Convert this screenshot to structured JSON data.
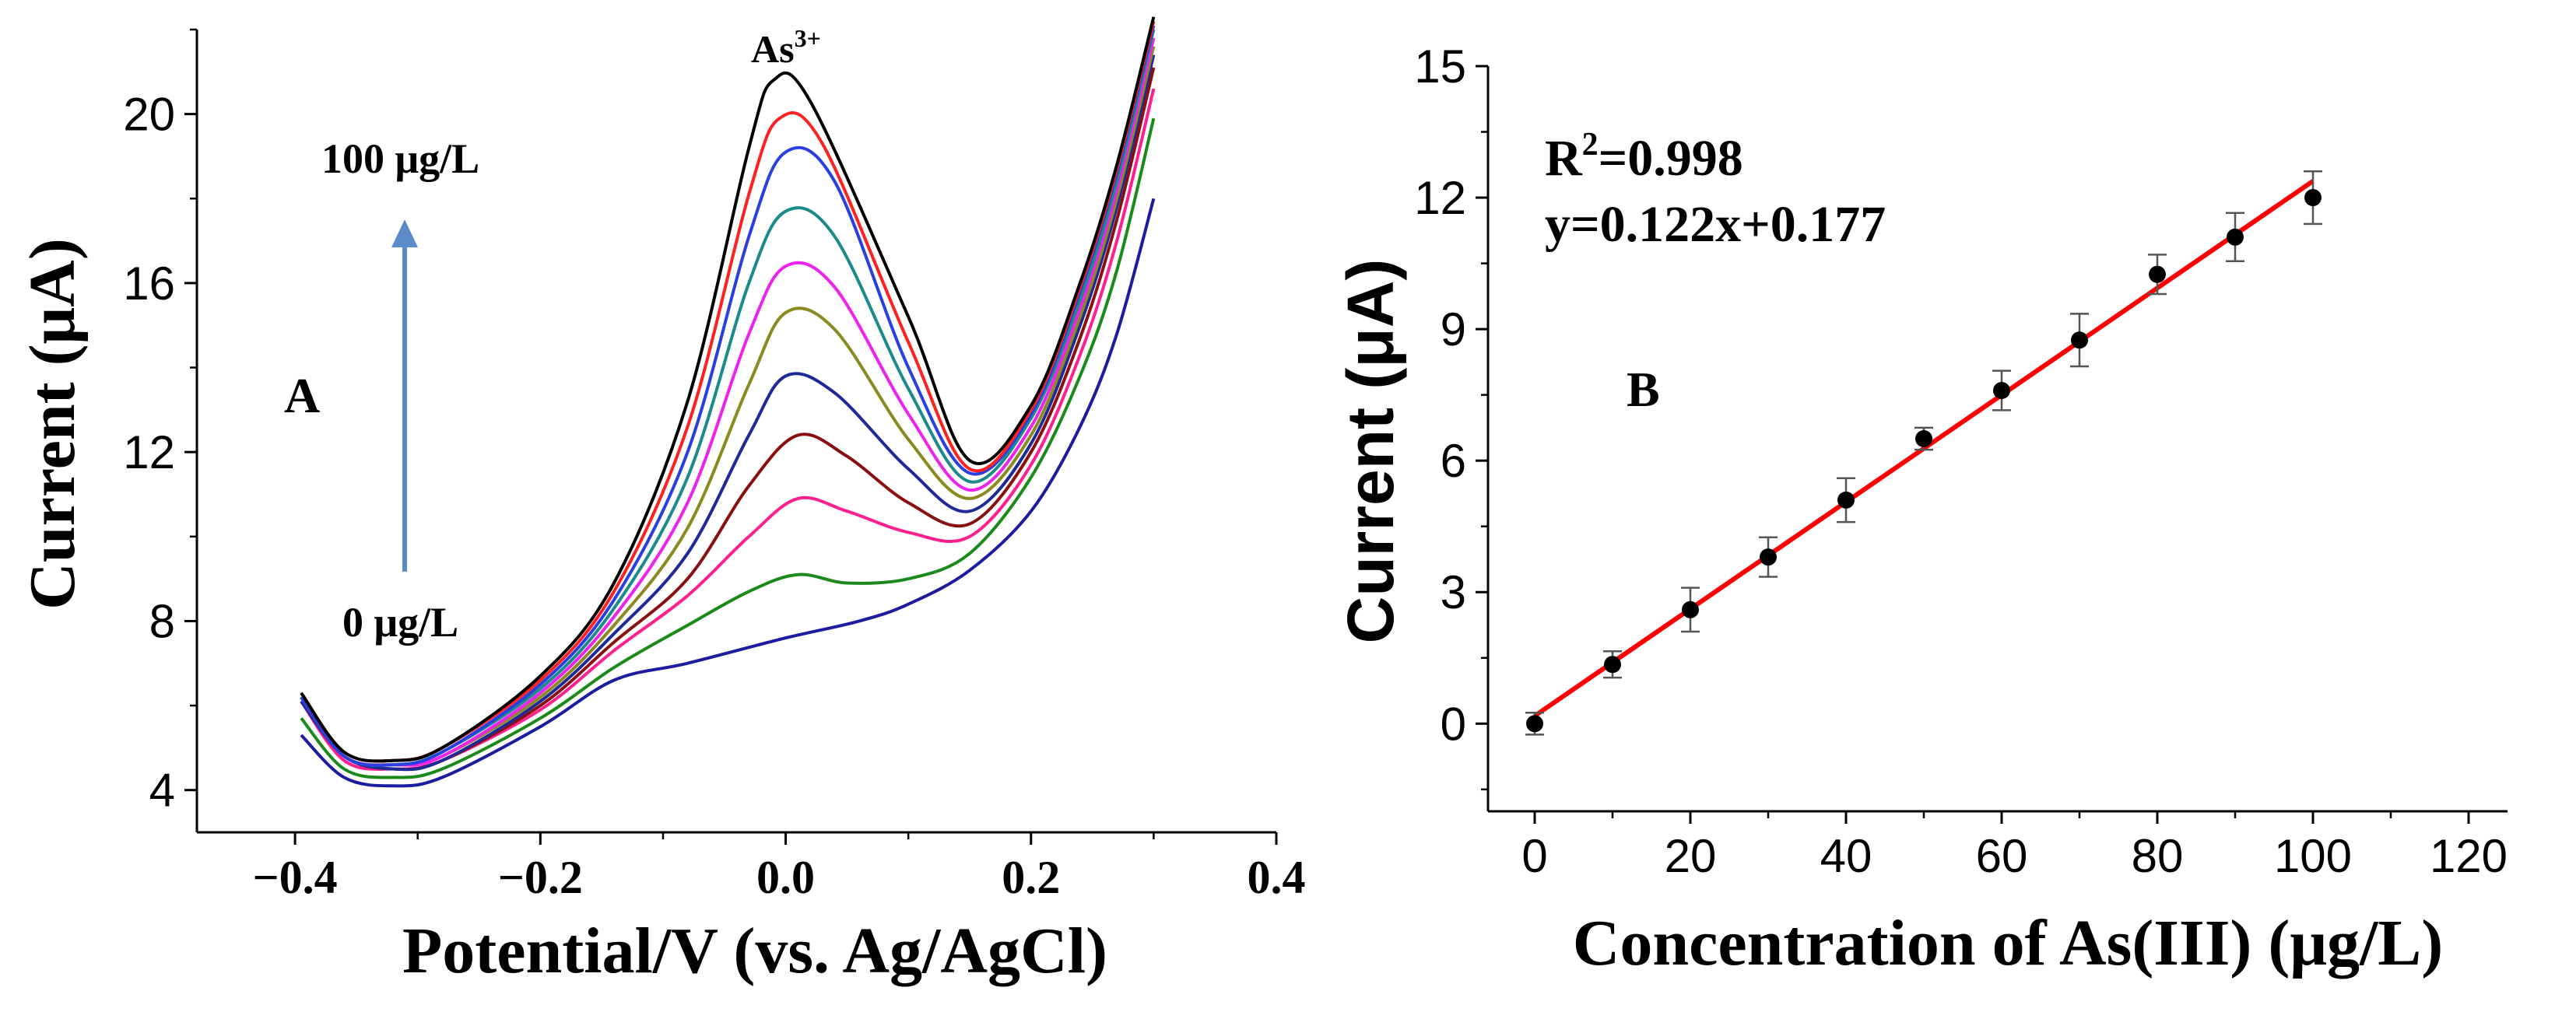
{
  "chart_data": [
    {
      "type": "line",
      "panel_label": "A",
      "xlabel": "Potential/V (vs. Ag/AgCl)",
      "ylabel": "Current (μA)",
      "xlim": [
        -0.48,
        0.4
      ],
      "ylim": [
        3,
        22
      ],
      "x_ticks": [
        "−0.4",
        "−0.2",
        "0.0",
        "0.2",
        "0.4"
      ],
      "y_ticks": [
        "4",
        "8",
        "12",
        "16",
        "20"
      ],
      "annotations": {
        "peak_label": "As",
        "peak_label_sup": "3+",
        "top_label": "100 μg/L",
        "bottom_label": "0 μg/L"
      },
      "series": [
        {
          "color": "#1c1ca0",
          "points": [
            [
              -0.395,
              5.3
            ],
            [
              -0.36,
              4.3
            ],
            [
              -0.32,
              4.1
            ],
            [
              -0.28,
              4.3
            ],
            [
              -0.2,
              5.5
            ],
            [
              -0.14,
              6.6
            ],
            [
              -0.08,
              7.0
            ],
            [
              0.0,
              7.6
            ],
            [
              0.06,
              8.0
            ],
            [
              0.1,
              8.4
            ],
            [
              0.15,
              9.2
            ],
            [
              0.2,
              10.6
            ],
            [
              0.24,
              12.6
            ],
            [
              0.27,
              14.8
            ],
            [
              0.3,
              18.0
            ]
          ]
        },
        {
          "color": "#1a8a1a",
          "points": [
            [
              -0.395,
              5.7
            ],
            [
              -0.36,
              4.5
            ],
            [
              -0.32,
              4.3
            ],
            [
              -0.28,
              4.5
            ],
            [
              -0.2,
              5.7
            ],
            [
              -0.14,
              6.9
            ],
            [
              -0.08,
              7.9
            ],
            [
              -0.03,
              8.7
            ],
            [
              0.01,
              9.1
            ],
            [
              0.05,
              8.9
            ],
            [
              0.1,
              9.0
            ],
            [
              0.15,
              9.6
            ],
            [
              0.2,
              11.4
            ],
            [
              0.24,
              13.8
            ],
            [
              0.27,
              16.3
            ],
            [
              0.3,
              19.9
            ]
          ]
        },
        {
          "color": "#ff1f8f",
          "points": [
            [
              -0.395,
              6.1
            ],
            [
              -0.36,
              4.7
            ],
            [
              -0.32,
              4.5
            ],
            [
              -0.28,
              4.7
            ],
            [
              -0.2,
              5.9
            ],
            [
              -0.14,
              7.3
            ],
            [
              -0.08,
              8.6
            ],
            [
              -0.03,
              10.0
            ],
            [
              0.01,
              10.9
            ],
            [
              0.05,
              10.6
            ],
            [
              0.1,
              10.1
            ],
            [
              0.15,
              10.0
            ],
            [
              0.2,
              11.7
            ],
            [
              0.24,
              14.3
            ],
            [
              0.27,
              17.0
            ],
            [
              0.3,
              20.6
            ]
          ]
        },
        {
          "color": "#8a1010",
          "points": [
            [
              -0.395,
              6.1
            ],
            [
              -0.36,
              4.8
            ],
            [
              -0.32,
              4.5
            ],
            [
              -0.28,
              4.7
            ],
            [
              -0.2,
              6.0
            ],
            [
              -0.14,
              7.5
            ],
            [
              -0.08,
              9.0
            ],
            [
              -0.03,
              11.2
            ],
            [
              0.01,
              12.4
            ],
            [
              0.05,
              11.9
            ],
            [
              0.1,
              10.8
            ],
            [
              0.15,
              10.3
            ],
            [
              0.2,
              12.0
            ],
            [
              0.24,
              14.7
            ],
            [
              0.27,
              17.5
            ],
            [
              0.3,
              21.1
            ]
          ]
        },
        {
          "color": "#1f2a99",
          "points": [
            [
              -0.395,
              6.1
            ],
            [
              -0.36,
              4.8
            ],
            [
              -0.32,
              4.5
            ],
            [
              -0.28,
              4.7
            ],
            [
              -0.2,
              6.1
            ],
            [
              -0.14,
              7.7
            ],
            [
              -0.08,
              9.6
            ],
            [
              -0.03,
              12.4
            ],
            [
              0.0,
              13.8
            ],
            [
              0.04,
              13.4
            ],
            [
              0.1,
              11.6
            ],
            [
              0.15,
              10.6
            ],
            [
              0.2,
              12.2
            ],
            [
              0.24,
              15.0
            ],
            [
              0.27,
              17.8
            ],
            [
              0.3,
              21.4
            ]
          ]
        },
        {
          "color": "#8a8a20",
          "points": [
            [
              -0.395,
              6.2
            ],
            [
              -0.36,
              4.8
            ],
            [
              -0.32,
              4.6
            ],
            [
              -0.28,
              4.8
            ],
            [
              -0.2,
              6.2
            ],
            [
              -0.14,
              7.9
            ],
            [
              -0.08,
              10.2
            ],
            [
              -0.03,
              13.6
            ],
            [
              0.0,
              15.3
            ],
            [
              0.04,
              14.9
            ],
            [
              0.1,
              12.3
            ],
            [
              0.15,
              10.9
            ],
            [
              0.2,
              12.4
            ],
            [
              0.24,
              15.2
            ],
            [
              0.27,
              18.0
            ],
            [
              0.3,
              21.6
            ]
          ]
        },
        {
          "color": "#ee22ee",
          "points": [
            [
              -0.395,
              6.2
            ],
            [
              -0.36,
              4.8
            ],
            [
              -0.32,
              4.6
            ],
            [
              -0.28,
              4.8
            ],
            [
              -0.2,
              6.3
            ],
            [
              -0.14,
              8.1
            ],
            [
              -0.08,
              10.8
            ],
            [
              -0.03,
              14.8
            ],
            [
              0.0,
              16.4
            ],
            [
              0.04,
              15.9
            ],
            [
              0.1,
              12.9
            ],
            [
              0.15,
              11.1
            ],
            [
              0.2,
              12.6
            ],
            [
              0.24,
              15.4
            ],
            [
              0.27,
              18.2
            ],
            [
              0.3,
              21.8
            ]
          ]
        },
        {
          "color": "#1a8a8a",
          "points": [
            [
              -0.395,
              6.2
            ],
            [
              -0.36,
              4.8
            ],
            [
              -0.32,
              4.6
            ],
            [
              -0.28,
              4.9
            ],
            [
              -0.2,
              6.4
            ],
            [
              -0.14,
              8.3
            ],
            [
              -0.08,
              11.4
            ],
            [
              -0.03,
              16.0
            ],
            [
              0.0,
              17.7
            ],
            [
              0.04,
              17.1
            ],
            [
              0.1,
              13.5
            ],
            [
              0.15,
              11.3
            ],
            [
              0.2,
              12.8
            ],
            [
              0.24,
              15.6
            ],
            [
              0.27,
              18.4
            ],
            [
              0.3,
              22.0
            ]
          ]
        },
        {
          "color": "#2a3fe0",
          "points": [
            [
              -0.395,
              6.2
            ],
            [
              -0.36,
              4.8
            ],
            [
              -0.32,
              4.6
            ],
            [
              -0.28,
              4.9
            ],
            [
              -0.2,
              6.5
            ],
            [
              -0.14,
              8.5
            ],
            [
              -0.08,
              12.0
            ],
            [
              -0.03,
              17.1
            ],
            [
              0.0,
              19.1
            ],
            [
              0.04,
              18.4
            ],
            [
              0.1,
              14.0
            ],
            [
              0.15,
              11.5
            ],
            [
              0.2,
              12.9
            ],
            [
              0.24,
              15.8
            ],
            [
              0.27,
              18.6
            ],
            [
              0.3,
              22.1
            ]
          ]
        },
        {
          "color": "#ff2020",
          "points": [
            [
              -0.395,
              6.3
            ],
            [
              -0.36,
              4.9
            ],
            [
              -0.32,
              4.7
            ],
            [
              -0.28,
              5.0
            ],
            [
              -0.2,
              6.6
            ],
            [
              -0.14,
              8.7
            ],
            [
              -0.08,
              12.6
            ],
            [
              -0.03,
              18.1
            ],
            [
              -0.005,
              19.9
            ],
            [
              0.03,
              19.3
            ],
            [
              0.1,
              14.6
            ],
            [
              0.15,
              11.6
            ],
            [
              0.2,
              13.0
            ],
            [
              0.24,
              15.9
            ],
            [
              0.27,
              18.7
            ],
            [
              0.3,
              22.2
            ]
          ]
        },
        {
          "color": "#000000",
          "points": [
            [
              -0.395,
              6.3
            ],
            [
              -0.36,
              4.9
            ],
            [
              -0.32,
              4.7
            ],
            [
              -0.28,
              5.0
            ],
            [
              -0.2,
              6.7
            ],
            [
              -0.14,
              8.9
            ],
            [
              -0.08,
              13.2
            ],
            [
              -0.03,
              19.2
            ],
            [
              -0.01,
              20.8
            ],
            [
              0.02,
              20.3
            ],
            [
              0.1,
              15.2
            ],
            [
              0.15,
              11.8
            ],
            [
              0.2,
              13.1
            ],
            [
              0.24,
              16.0
            ],
            [
              0.27,
              18.8
            ],
            [
              0.3,
              22.3
            ]
          ]
        }
      ]
    },
    {
      "type": "scatter",
      "panel_label": "B",
      "xlabel": "Concentration of As(III) (μg/L)",
      "ylabel": "Current (μA)",
      "xlim": [
        -6,
        125
      ],
      "ylim": [
        -2,
        15
      ],
      "x_ticks": [
        "0",
        "20",
        "40",
        "60",
        "80",
        "100",
        "120"
      ],
      "y_ticks": [
        "0",
        "3",
        "6",
        "9",
        "12",
        "15"
      ],
      "annotations": {
        "r2_text": "R",
        "r2_sup": "2",
        "r2_value": "=0.998",
        "equation": "y=0.122x+0.177"
      },
      "points": [
        {
          "x": 0,
          "y": 0.0,
          "err": 0.25
        },
        {
          "x": 10,
          "y": 1.35,
          "err": 0.3
        },
        {
          "x": 20,
          "y": 2.6,
          "err": 0.5
        },
        {
          "x": 30,
          "y": 3.8,
          "err": 0.45
        },
        {
          "x": 40,
          "y": 5.1,
          "err": 0.5
        },
        {
          "x": 50,
          "y": 6.5,
          "err": 0.25
        },
        {
          "x": 60,
          "y": 7.6,
          "err": 0.45
        },
        {
          "x": 70,
          "y": 8.75,
          "err": 0.6
        },
        {
          "x": 80,
          "y": 10.25,
          "err": 0.45
        },
        {
          "x": 90,
          "y": 11.1,
          "err": 0.55
        },
        {
          "x": 100,
          "y": 12.0,
          "err": 0.6
        }
      ],
      "fit": {
        "slope": 0.122,
        "intercept": 0.177,
        "x_range": [
          0,
          100
        ],
        "color": "#ff0000"
      }
    }
  ]
}
